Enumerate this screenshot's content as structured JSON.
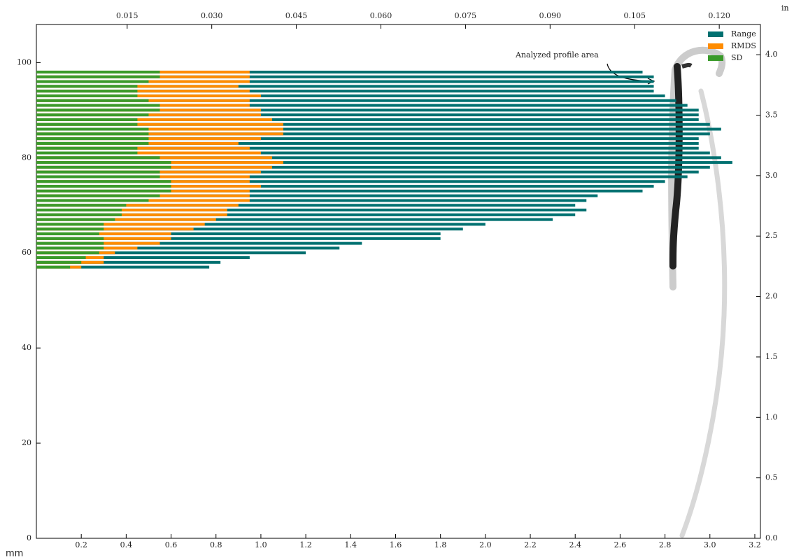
{
  "chart_data": {
    "type": "barh",
    "y": [
      57,
      58,
      59,
      60,
      61,
      62,
      63,
      64,
      65,
      66,
      67,
      68,
      69,
      70,
      71,
      72,
      73,
      74,
      75,
      76,
      77,
      78,
      79,
      80,
      81,
      82,
      83,
      84,
      85,
      86,
      87,
      88,
      89,
      90,
      91,
      92,
      93,
      94,
      95,
      96,
      97,
      98
    ],
    "series": [
      {
        "name": "Range",
        "color": "#007070",
        "values": [
          0.77,
          0.82,
          0.95,
          1.2,
          1.35,
          1.45,
          1.8,
          1.8,
          1.9,
          2.0,
          2.3,
          2.4,
          2.45,
          2.4,
          2.45,
          2.5,
          2.7,
          2.75,
          2.8,
          2.9,
          2.95,
          3.0,
          3.1,
          3.05,
          3.0,
          2.95,
          2.95,
          2.95,
          3.0,
          3.05,
          3.0,
          2.95,
          2.95,
          2.95,
          2.9,
          2.85,
          2.8,
          2.75,
          2.75,
          2.75,
          2.75,
          2.7
        ]
      },
      {
        "name": "RMDS",
        "color": "#ff8c00",
        "values": [
          0.2,
          0.3,
          0.3,
          0.35,
          0.45,
          0.55,
          0.6,
          0.6,
          0.7,
          0.75,
          0.8,
          0.85,
          0.85,
          0.9,
          0.95,
          0.95,
          0.95,
          1.0,
          0.95,
          0.95,
          1.0,
          1.05,
          1.1,
          1.05,
          1.0,
          0.95,
          0.9,
          1.0,
          1.1,
          1.1,
          1.1,
          1.05,
          1.0,
          1.0,
          0.95,
          0.95,
          1.0,
          0.95,
          0.9,
          0.95,
          0.95,
          0.95
        ]
      },
      {
        "name": "SD",
        "color": "#3a9a2a",
        "values": [
          0.15,
          0.2,
          0.22,
          0.28,
          0.3,
          0.3,
          0.3,
          0.28,
          0.3,
          0.3,
          0.35,
          0.38,
          0.38,
          0.4,
          0.5,
          0.55,
          0.6,
          0.6,
          0.6,
          0.55,
          0.55,
          0.6,
          0.6,
          0.55,
          0.45,
          0.45,
          0.5,
          0.5,
          0.5,
          0.5,
          0.45,
          0.45,
          0.5,
          0.55,
          0.55,
          0.5,
          0.45,
          0.45,
          0.45,
          0.5,
          0.55,
          0.55
        ]
      }
    ],
    "xlim": [
      0,
      3.225
    ],
    "xticks": [
      0.2,
      0.4,
      0.6,
      0.8,
      {
        "value": 1.0,
        "label": "1.0"
      },
      1.2,
      1.4,
      1.6,
      1.8,
      {
        "value": 2.0,
        "label": "2.0"
      },
      2.2,
      2.4,
      2.6,
      2.8,
      {
        "value": 3.0,
        "label": "3.0"
      },
      3.2
    ],
    "x_label": "mm",
    "x2lim": [
      -0.0011,
      0.1273
    ],
    "x2ticks": [
      0.015,
      {
        "value": 0.03,
        "label": "0.030"
      },
      0.045,
      {
        "value": 0.06,
        "label": "0.060"
      },
      0.075,
      {
        "value": 0.09,
        "label": "0.090"
      },
      0.105,
      {
        "value": 0.12,
        "label": "0.120"
      }
    ],
    "ylim": [
      0,
      108
    ],
    "yticks": [
      0,
      20,
      40,
      60,
      80,
      100
    ],
    "y2lim": [
      0,
      4.25
    ],
    "y2ticks": [
      {
        "value": 0,
        "label": "0.0"
      },
      0.5,
      {
        "value": 1,
        "label": "1.0"
      },
      1.5,
      {
        "value": 2,
        "label": "2.0"
      },
      2.5,
      {
        "value": 3,
        "label": "3.0"
      },
      3.5,
      {
        "value": 4,
        "label": "4.0"
      }
    ],
    "y2_label": "in",
    "annotation": "Analyzed profile area",
    "legend": "upper right"
  }
}
